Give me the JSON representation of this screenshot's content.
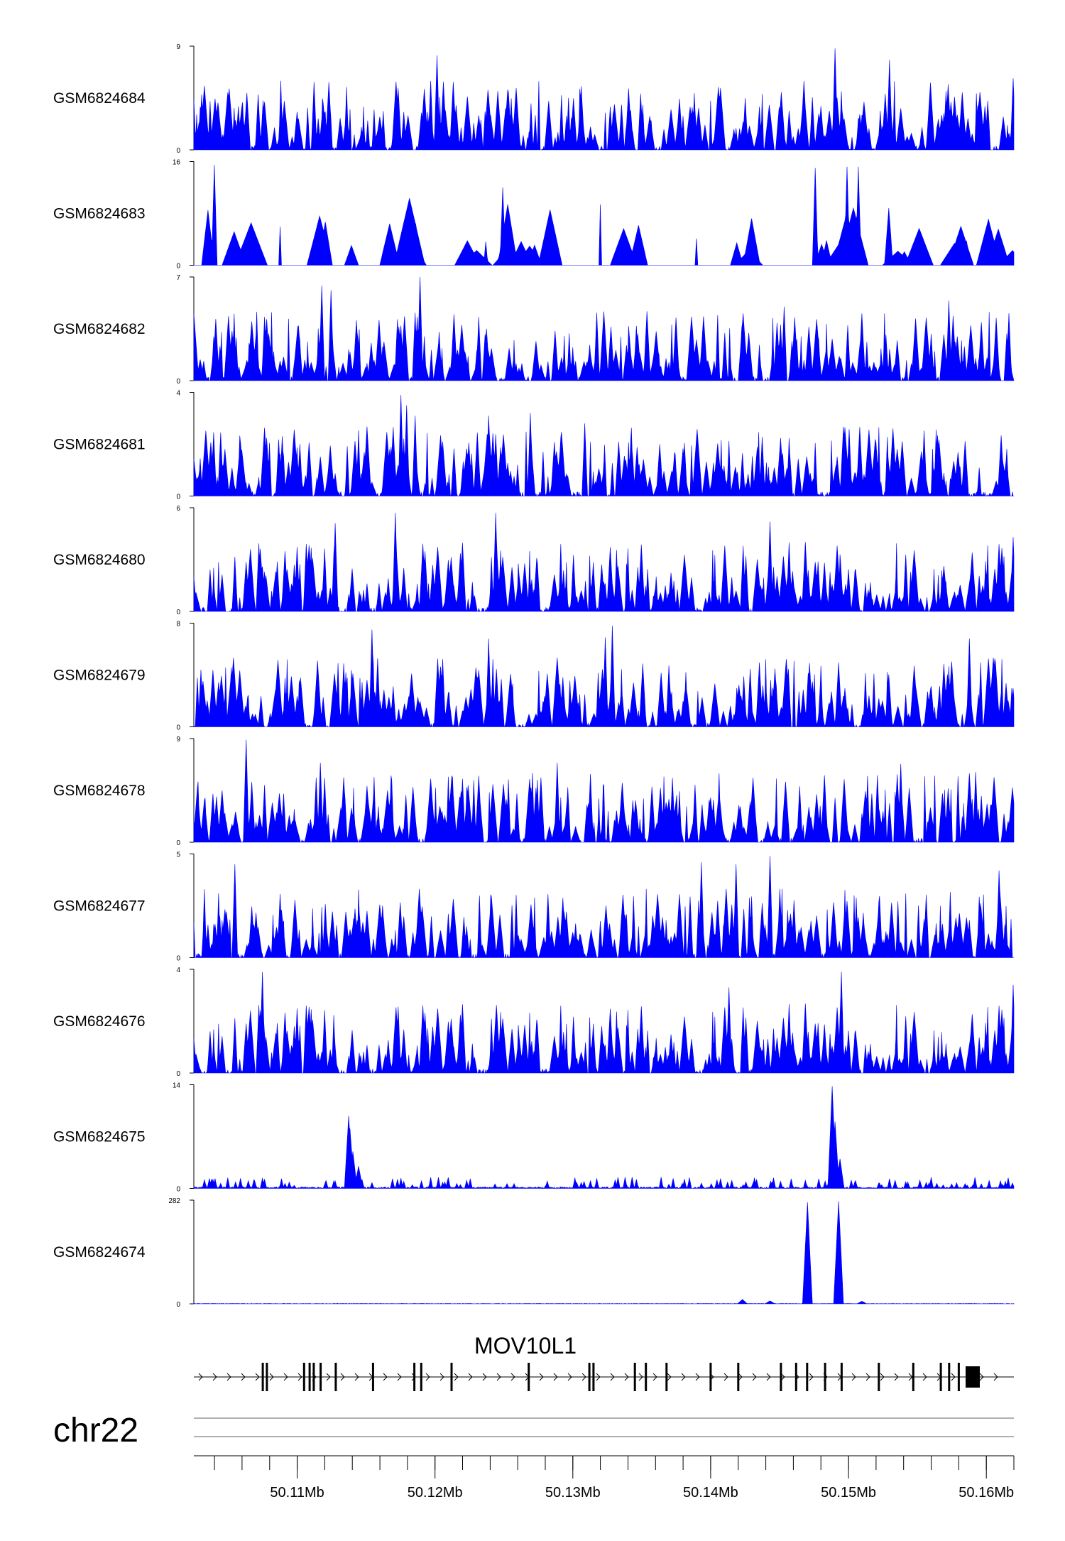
{
  "chart_data": {
    "type": "area",
    "title": "",
    "chromosome": "chr22",
    "gene": "MOV10L1",
    "xlim_mb": [
      50.1025,
      50.162
    ],
    "x_ticks": [
      "50.11Mb",
      "50.12Mb",
      "50.13Mb",
      "50.14Mb",
      "50.15Mb",
      "50.16Mb"
    ],
    "x_tick_values": [
      50.11,
      50.12,
      50.13,
      50.14,
      50.15,
      50.16
    ],
    "colors": {
      "signal": "#0000ff",
      "gene": "#000000",
      "axis": "#000000"
    },
    "tracks": [
      {
        "name": "GSM6824684",
        "ymin": "0",
        "ymax": "9",
        "ymax_value": 9,
        "pattern": "noisy",
        "peaks": [
          [
            50.1202,
            8.2
          ],
          [
            50.1492,
            8.8
          ],
          [
            50.1532,
            7.8
          ],
          [
            50.1622,
            6.2
          ]
        ]
      },
      {
        "name": "GSM6824683",
        "ymin": "0",
        "ymax": "16",
        "ymax_value": 16,
        "pattern": "sparse",
        "peaks": [
          [
            50.104,
            15.5
          ],
          [
            50.125,
            12.0
          ],
          [
            50.1478,
            15.0
          ],
          [
            50.1501,
            15.2
          ],
          [
            50.1509,
            15.2
          ]
        ]
      },
      {
        "name": "GSM6824682",
        "ymin": "0",
        "ymax": "7",
        "ymax_value": 7,
        "pattern": "noisy",
        "peaks": [
          [
            50.1118,
            6.4
          ],
          [
            50.1125,
            6.1
          ],
          [
            50.119,
            7.0
          ],
          [
            50.1455,
            5.0
          ],
          [
            50.1575,
            5.4
          ]
        ]
      },
      {
        "name": "GSM6824681",
        "ymin": "0",
        "ymax": "4",
        "ymax_value": 4,
        "pattern": "noisy",
        "peaks": [
          [
            50.1176,
            3.9
          ],
          [
            50.118,
            3.5
          ],
          [
            50.1186,
            3.1
          ],
          [
            50.124,
            3.1
          ],
          [
            50.127,
            3.2
          ],
          [
            50.131,
            2.8
          ]
        ]
      },
      {
        "name": "GSM6824680",
        "ymin": "0",
        "ymax": "6",
        "ymax_value": 6,
        "pattern": "noisy",
        "peaks": [
          [
            50.1172,
            5.7
          ],
          [
            50.1128,
            5.1
          ],
          [
            50.1245,
            5.7
          ],
          [
            50.1445,
            5.2
          ],
          [
            50.1622,
            4.3
          ]
        ]
      },
      {
        "name": "GSM6824679",
        "ymin": "0",
        "ymax": "8",
        "ymax_value": 8,
        "pattern": "noisy",
        "peaks": [
          [
            50.1155,
            7.5
          ],
          [
            50.124,
            6.8
          ],
          [
            50.133,
            7.8
          ],
          [
            50.1325,
            6.9
          ],
          [
            50.159,
            6.8
          ]
        ]
      },
      {
        "name": "GSM6824678",
        "ymin": "0",
        "ymax": "9",
        "ymax_value": 9,
        "pattern": "noisy",
        "peaks": [
          [
            50.1063,
            8.9
          ],
          [
            50.1117,
            6.9
          ],
          [
            50.129,
            6.9
          ],
          [
            50.154,
            6.8
          ],
          [
            50.1595,
            6.1
          ]
        ]
      },
      {
        "name": "GSM6824677",
        "ymin": "0",
        "ymax": "5",
        "ymax_value": 5,
        "pattern": "noisy",
        "peaks": [
          [
            50.1055,
            4.5
          ],
          [
            50.1445,
            4.9
          ],
          [
            50.1395,
            4.6
          ],
          [
            50.142,
            4.5
          ],
          [
            50.1612,
            4.2
          ]
        ]
      },
      {
        "name": "GSM6824676",
        "ymin": "0",
        "ymax": "4",
        "ymax_value": 4,
        "pattern": "noisy",
        "peaks": [
          [
            50.1075,
            3.9
          ],
          [
            50.1497,
            3.9
          ],
          [
            50.1622,
            3.4
          ],
          [
            50.1415,
            3.3
          ]
        ]
      },
      {
        "name": "GSM6824675",
        "ymin": "0",
        "ymax": "14",
        "ymax_value": 14,
        "pattern": "quiet",
        "peaks": [
          [
            50.1138,
            9.8
          ],
          [
            50.1139,
            8.0
          ],
          [
            50.1141,
            5.0
          ],
          [
            50.1145,
            3.0
          ],
          [
            50.149,
            13.8
          ],
          [
            50.1492,
            9.0
          ],
          [
            50.1496,
            4.0
          ]
        ]
      },
      {
        "name": "GSM6824674",
        "ymin": "0",
        "ymax": "282",
        "ymax_value": 282,
        "pattern": "flat",
        "peaks": [
          [
            50.1472,
            276
          ],
          [
            50.1495,
            279
          ],
          [
            50.1425,
            12
          ],
          [
            50.1445,
            8
          ],
          [
            50.1512,
            7
          ]
        ]
      }
    ],
    "exons_mb": [
      50.1075,
      50.1078,
      50.1105,
      50.1109,
      50.1112,
      50.1117,
      50.1128,
      50.1155,
      50.1185,
      50.119,
      50.1212,
      50.1268,
      50.1312,
      50.1315,
      50.1345,
      50.1353,
      50.1368,
      50.14,
      50.142,
      50.1451,
      50.1462,
      50.147,
      50.1483,
      50.1495,
      50.1522,
      50.1547,
      50.1567,
      50.1573,
      50.158
    ]
  }
}
